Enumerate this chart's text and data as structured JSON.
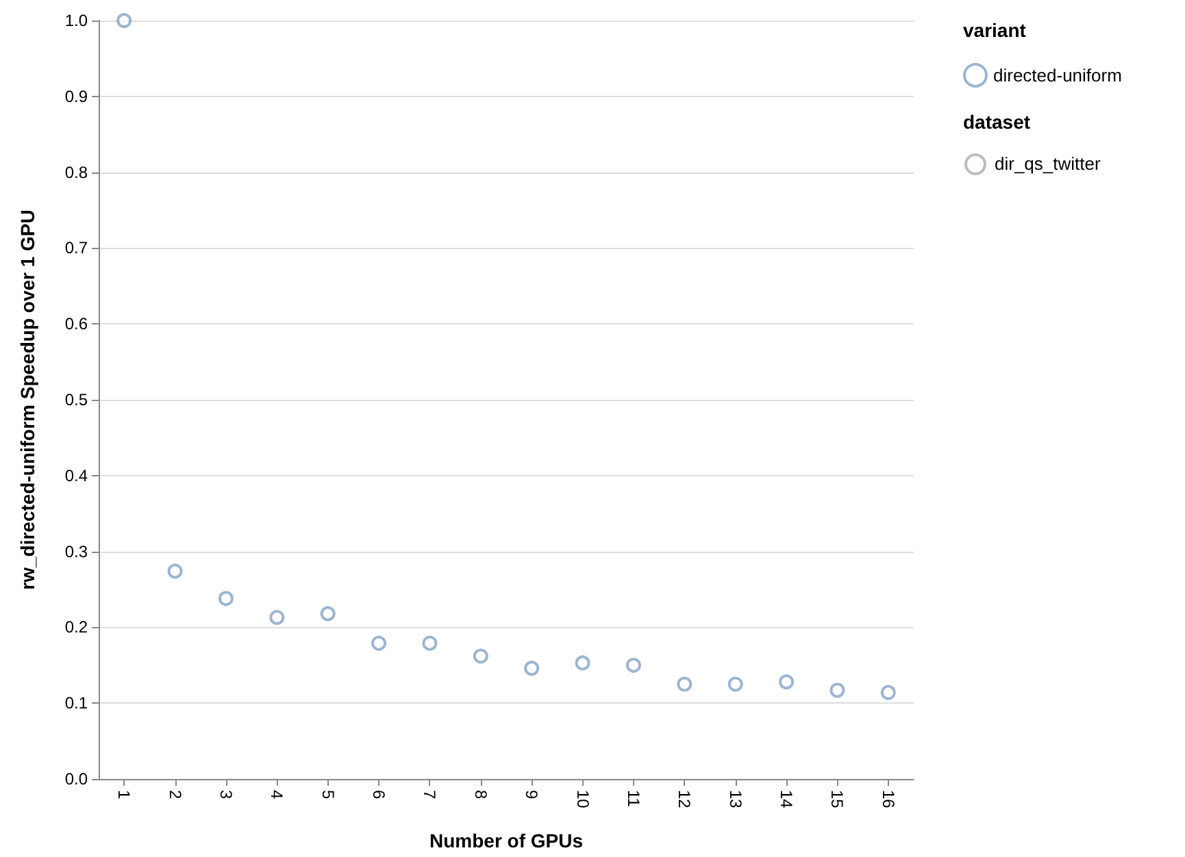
{
  "chart_data": {
    "type": "scatter",
    "xlabel": "Number of GPUs",
    "ylabel": "rw_directed-uniform Speedup over 1 GPU",
    "legend_title": "variant",
    "categories": [
      "1",
      "2",
      "3",
      "4",
      "5",
      "6",
      "7",
      "8",
      "9",
      "10",
      "11",
      "12",
      "13",
      "14",
      "15",
      "16"
    ],
    "series": [
      {
        "name": "directed-uniform",
        "color": "#4c78a8",
        "values": [
          1.0,
          0.274,
          0.238,
          0.213,
          0.218,
          0.179,
          0.179,
          0.162,
          0.146,
          0.153,
          0.15,
          0.125,
          0.125,
          0.128,
          0.117,
          0.114
        ]
      }
    ],
    "annotations": [
      "dataset",
      "dir_qs_twitter"
    ],
    "ylim": [
      0,
      1
    ],
    "yticks": [
      {
        "value": 0,
        "label": "0.0"
      },
      0.1,
      0.2,
      0.3,
      0.4,
      0.5,
      0.6,
      0.7,
      0.8,
      0.9,
      {
        "value": 1,
        "label": "1.0"
      }
    ],
    "grid": "y",
    "legend": "top right",
    "marker": "circle"
  }
}
